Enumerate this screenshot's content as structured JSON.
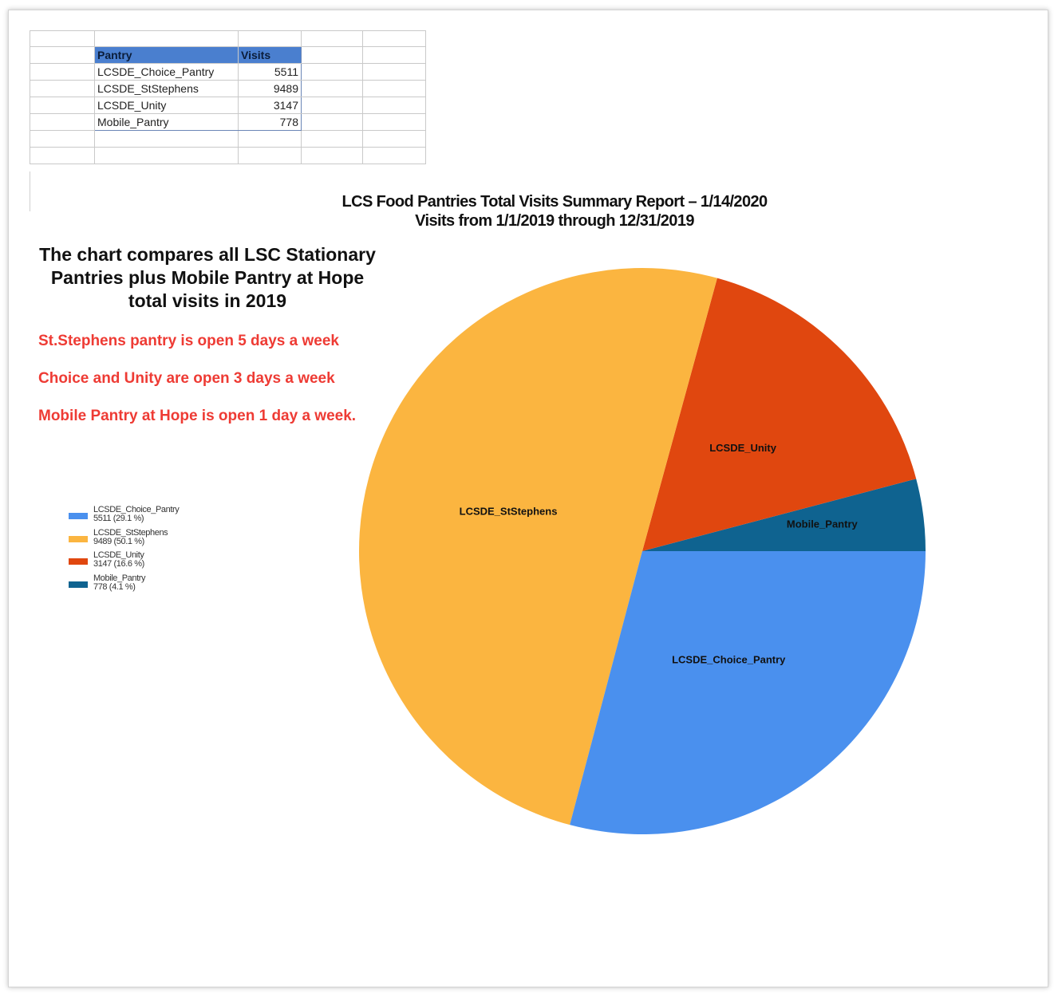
{
  "table": {
    "headers": [
      "Pantry",
      "Visits"
    ],
    "rows": [
      [
        "LCSDE_Choice_Pantry",
        "5511"
      ],
      [
        "LCSDE_StStephens",
        "9489"
      ],
      [
        "LCSDE_Unity",
        "3147"
      ],
      [
        "Mobile_Pantry",
        "778"
      ]
    ]
  },
  "description": "The chart compares all LSC Stationary Pantries plus Mobile Pantry at Hope total visits in 2019",
  "notes": [
    "St.Stephens pantry is open 5 days a week",
    "Choice and Unity are open 3 days a week",
    "Mobile Pantry at Hope is open 1  day a week."
  ],
  "chart_data": {
    "type": "pie",
    "title": "LCS Food Pantries Total Visits Summary Report – 1/14/2020",
    "subtitle": "Visits from 1/1/2019 through 12/31/2019",
    "categories": [
      "LCSDE_Choice_Pantry",
      "LCSDE_StStephens",
      "LCSDE_Unity",
      "Mobile_Pantry"
    ],
    "values": [
      5511,
      9489,
      3147,
      778
    ],
    "legend": [
      {
        "name": "LCSDE_Choice_Pantry",
        "detail": "5511 (29.1 %)"
      },
      {
        "name": "LCSDE_StStephens",
        "detail": "9489 (50.1 %)"
      },
      {
        "name": "LCSDE_Unity",
        "detail": "3147 (16.6 %)"
      },
      {
        "name": "Mobile_Pantry",
        "detail": "778 (4.1 %)"
      }
    ],
    "colors": [
      "#4a90ee",
      "#fbb540",
      "#e0470f",
      "#0f6390"
    ],
    "legend_position": "left"
  }
}
